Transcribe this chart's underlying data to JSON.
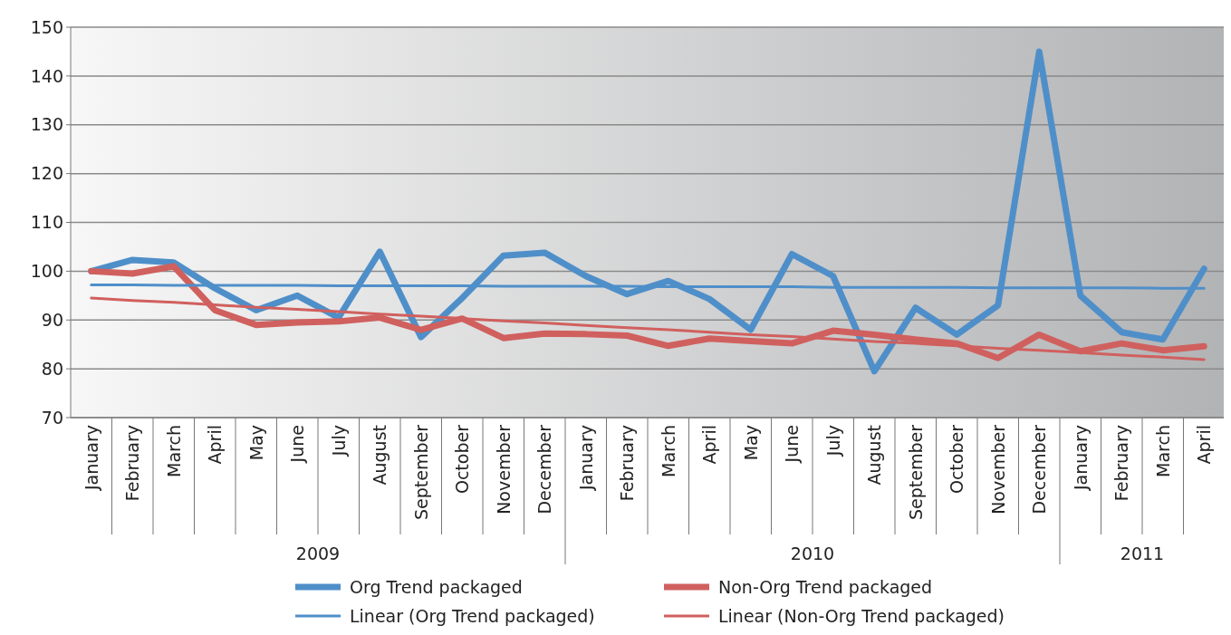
{
  "chart_data": {
    "type": "line",
    "categories": [
      "January",
      "February",
      "March",
      "April",
      "May",
      "June",
      "July",
      "August",
      "September",
      "October",
      "November",
      "December",
      "January",
      "February",
      "March",
      "April",
      "May",
      "June",
      "July",
      "August",
      "September",
      "October",
      "November",
      "December",
      "January",
      "February",
      "March",
      "April"
    ],
    "series": [
      {
        "name": "Org Trend packaged",
        "color": "#4f8fc9",
        "values": [
          100,
          102.3,
          101.8,
          96.5,
          92,
          95,
          90.5,
          104,
          86.5,
          94.5,
          103.2,
          103.8,
          99,
          95.3,
          98,
          94.3,
          88,
          103.5,
          99,
          79.5,
          92.5,
          87,
          93,
          145,
          95,
          87.5,
          86,
          100.5
        ]
      },
      {
        "name": "Non-Org Trend packaged",
        "color": "#d0605e",
        "values": [
          100,
          99.5,
          101,
          92,
          89,
          89.5,
          89.7,
          90.5,
          88,
          90.3,
          86.3,
          87.2,
          87.1,
          86.8,
          84.7,
          86.2,
          85.7,
          85.2,
          87.8,
          87,
          86,
          85.2,
          82.2,
          87,
          83.6,
          85.2,
          83.8,
          84.6
        ]
      },
      {
        "name": "Linear (Org Trend packaged)",
        "color": "#4f8fc9",
        "line_style": "solid",
        "values": [
          97.2,
          97.2,
          97.1,
          97.1,
          97.1,
          97.1,
          97.0,
          97.0,
          97.0,
          97.0,
          96.9,
          96.9,
          96.9,
          96.9,
          96.8,
          96.8,
          96.8,
          96.8,
          96.7,
          96.7,
          96.7,
          96.7,
          96.6,
          96.6,
          96.6,
          96.6,
          96.5,
          96.5
        ]
      },
      {
        "name": "Linear (Non-Org Trend packaged)",
        "color": "#d0605e",
        "line_style": "solid",
        "values": [
          94.5,
          94.0,
          93.6,
          93.1,
          92.6,
          92.2,
          91.7,
          91.2,
          90.8,
          90.3,
          89.8,
          89.4,
          88.9,
          88.4,
          88.0,
          87.5,
          87.0,
          86.6,
          86.1,
          85.6,
          85.2,
          84.7,
          84.2,
          83.8,
          83.3,
          82.8,
          82.4,
          81.9
        ]
      }
    ],
    "annotations": [
      "2009",
      "2010",
      "2011"
    ],
    "ylim": [
      70,
      150
    ],
    "yticks": [
      70,
      80,
      90,
      100,
      110,
      120,
      130,
      140,
      150
    ],
    "grid": "y",
    "legend": "bottom",
    "marker": "none"
  }
}
